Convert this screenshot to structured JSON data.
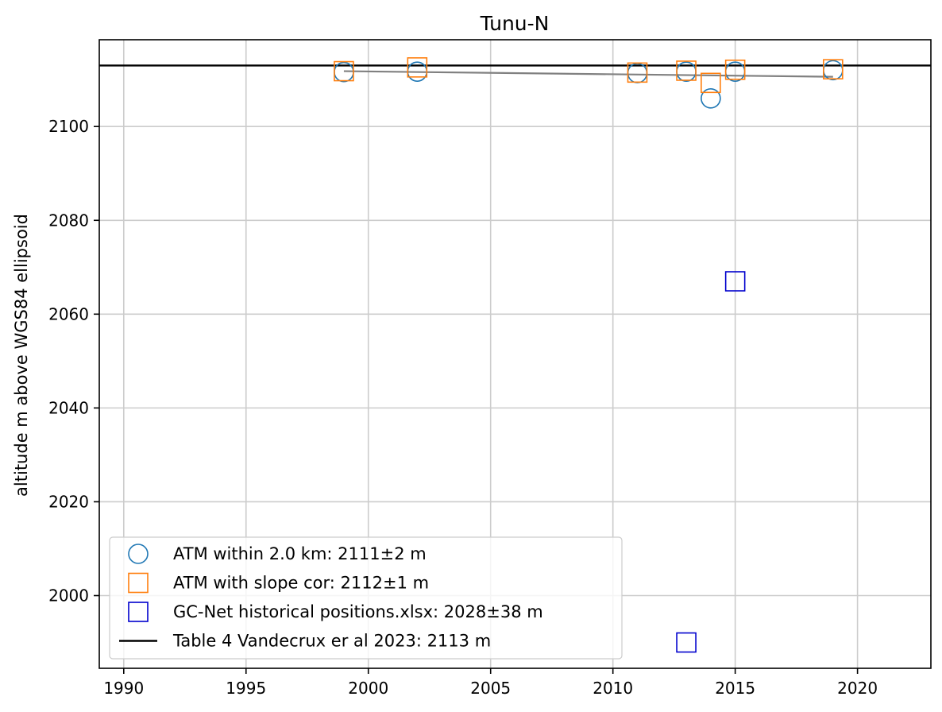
{
  "chart_data": {
    "type": "scatter",
    "title": "Tunu-N",
    "xlabel": "",
    "ylabel": "altitude m above WGS84 ellipsoid",
    "xlim": [
      1989,
      2023
    ],
    "ylim": [
      1984.5,
      2118.5
    ],
    "xticks": [
      1990,
      1995,
      2000,
      2005,
      2010,
      2015,
      2020
    ],
    "yticks": [
      2000,
      2020,
      2040,
      2060,
      2080,
      2100
    ],
    "grid": true,
    "legend_position": "lower-left",
    "series": [
      {
        "name": "ATM within 2.0 km: 2111±2 m",
        "marker": "circle",
        "color": "#1f77b4",
        "x": [
          1999,
          2002,
          2011,
          2013,
          2014,
          2015,
          2019
        ],
        "y": [
          2111.6,
          2111.7,
          2111.4,
          2111.7,
          2106.0,
          2111.7,
          2112.0
        ]
      },
      {
        "name": "ATM with slope cor: 2112±1 m",
        "marker": "square",
        "color": "#ff7f0e",
        "x": [
          1999,
          2002,
          2011,
          2013,
          2014,
          2015,
          2019
        ],
        "y": [
          2111.8,
          2112.6,
          2111.5,
          2111.9,
          2109.3,
          2112.1,
          2112.2
        ]
      },
      {
        "name": "GC-Net historical positions.xlsx: 2028±38 m",
        "marker": "square",
        "color": "#0000cd",
        "x": [
          2013,
          2015
        ],
        "y": [
          1990.0,
          2067.0
        ]
      }
    ],
    "trend_line": {
      "color": "#808080",
      "x": [
        1999,
        2019
      ],
      "y": [
        2111.8,
        2110.6
      ]
    },
    "reference_line": {
      "name": "Table 4 Vandecrux er al 2023: 2113 m",
      "color": "#000000",
      "y": 2113
    }
  }
}
